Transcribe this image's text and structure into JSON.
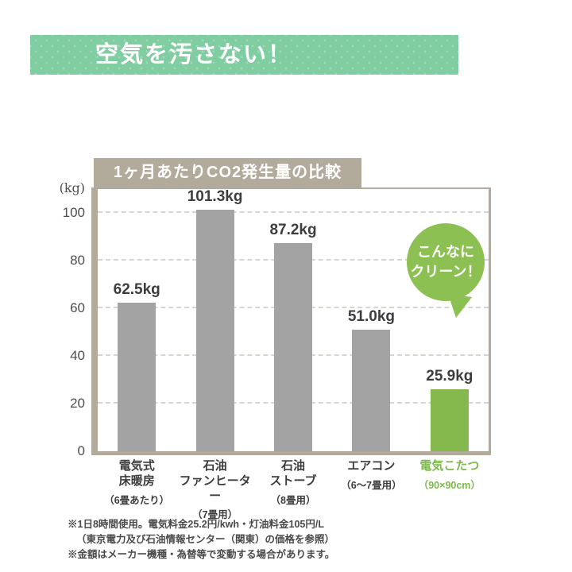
{
  "header": {
    "title": "空気を汚さない！"
  },
  "chart_data": {
    "type": "bar",
    "title": "1ヶ月あたりCO2発生量の比較",
    "unit_label": "(kg)",
    "categories": [
      {
        "name": "電気式\n床暖房",
        "sub": "（6畳あたり）",
        "highlight": false
      },
      {
        "name": "石油\nファンヒーター",
        "sub": "（7畳用）",
        "highlight": false
      },
      {
        "name": "石油\nストーブ",
        "sub": "（8畳用）",
        "highlight": false
      },
      {
        "name": "エアコン",
        "sub": "（6～7畳用）",
        "highlight": false
      },
      {
        "name": "電気こたつ",
        "sub": "（90×90cm）",
        "highlight": true
      }
    ],
    "values": [
      62.5,
      101.3,
      87.2,
      51.0,
      25.9
    ],
    "value_labels": [
      "62.5kg",
      "101.3kg",
      "87.2kg",
      "51.0kg",
      "25.9kg"
    ],
    "yticks": [
      0,
      20,
      40,
      60,
      80,
      100
    ],
    "ylim": [
      0,
      110
    ],
    "grid": "horizontal-dashed",
    "legend": "none",
    "annotation": "こんなにクリーン！",
    "colors": {
      "bar_default": "#a3a3a3",
      "bar_highlight": "#86b94d",
      "bubble": "#8cc052",
      "axis_frame": "#b2ab9c",
      "header_banner": "#80cda2"
    }
  },
  "bubble": {
    "line1": "こんなに",
    "line2": "クリーン！"
  },
  "footnotes": {
    "line1": "※1日8時間使用。電気料金25.2円/kwh・灯油料金105円/L",
    "line2": "（東京電力及び石油情報センター（関東）の価格を参照）",
    "line3": "※金額はメーカー機種・為替等で変動する場合があります。"
  }
}
